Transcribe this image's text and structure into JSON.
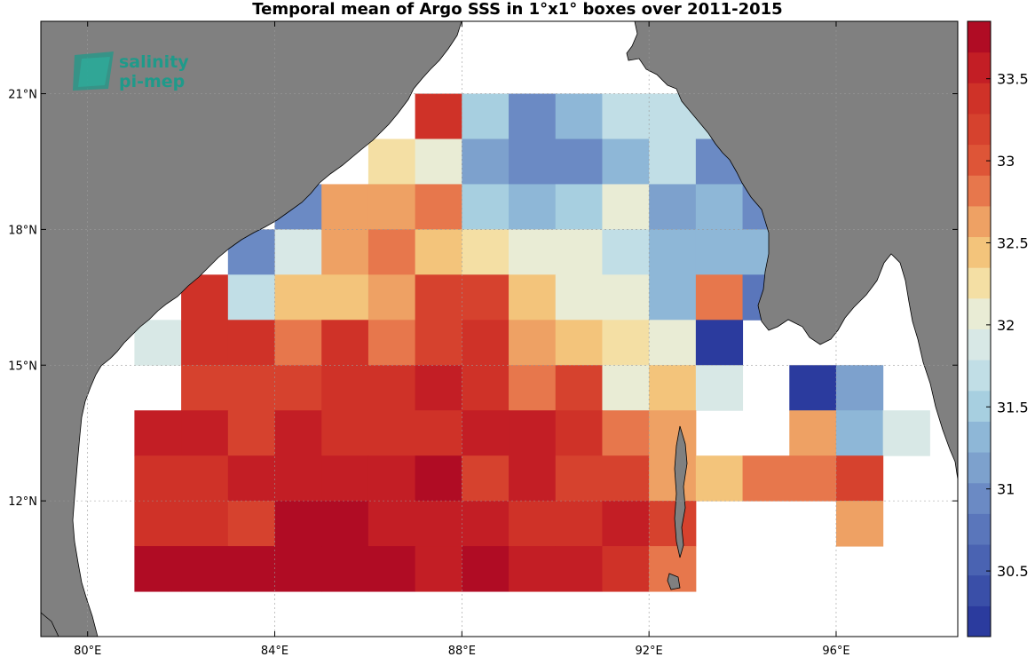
{
  "title": "Temporal mean of Argo SSS in 1°x1° boxes over 2011-2015",
  "logo": {
    "line1": "salinity",
    "line2": "pi-mep",
    "color": "#1f9a8a"
  },
  "colors": {
    "land": "#808080",
    "ocean": "#ffffff",
    "frame": "#000000",
    "grid": "#9a9a9a"
  },
  "chart_data": {
    "type": "heatmap",
    "variable": "SSS",
    "lon_range": [
      79,
      98.6
    ],
    "lat_range": [
      9,
      22.6
    ],
    "x_ticks": [
      80,
      84,
      88,
      92,
      96
    ],
    "x_tick_labels": [
      "80°E",
      "84°E",
      "88°E",
      "92°E",
      "96°E"
    ],
    "y_ticks": [
      12,
      15,
      18,
      21
    ],
    "y_tick_labels": [
      "12°N",
      "15°N",
      "18°N",
      "21°N"
    ],
    "grid": true,
    "colorbar": {
      "min": 30.1,
      "max": 33.85,
      "ticks": [
        30.5,
        31,
        31.5,
        32,
        32.5,
        33,
        33.5
      ],
      "tick_labels": [
        "30.5",
        "31",
        "31.5",
        "32",
        "32.5",
        "33",
        "33.5"
      ],
      "colors": [
        "#2b3b9e",
        "#3a4fa8",
        "#4a63b2",
        "#5a76bb",
        "#6b8ac4",
        "#7da1cd",
        "#8eb7d7",
        "#a7cfe0",
        "#c1dee6",
        "#d8e8e6",
        "#e9ecd5",
        "#f4dfa4",
        "#f3c47b",
        "#eea164",
        "#e7774c",
        "#de5537",
        "#d6422e",
        "#cf3228",
        "#c31e25",
        "#b00c24"
      ]
    },
    "cells": [
      {
        "lon": 87,
        "lat": 20,
        "sss": 33.3
      },
      {
        "lon": 88,
        "lat": 20,
        "sss": 31.5
      },
      {
        "lon": 89,
        "lat": 20,
        "sss": 30.9
      },
      {
        "lon": 90,
        "lat": 20,
        "sss": 31.3
      },
      {
        "lon": 91,
        "lat": 20,
        "sss": 31.7
      },
      {
        "lon": 92,
        "lat": 20,
        "sss": 31.7
      },
      {
        "lon": 93,
        "lat": 20,
        "sss": 31.6
      },
      {
        "lon": 86,
        "lat": 19,
        "sss": 32.3
      },
      {
        "lon": 87,
        "lat": 19,
        "sss": 32.1
      },
      {
        "lon": 88,
        "lat": 19,
        "sss": 31.2
      },
      {
        "lon": 89,
        "lat": 19,
        "sss": 30.9
      },
      {
        "lon": 90,
        "lat": 19,
        "sss": 31.0
      },
      {
        "lon": 91,
        "lat": 19,
        "sss": 31.4
      },
      {
        "lon": 92,
        "lat": 19,
        "sss": 31.7
      },
      {
        "lon": 93,
        "lat": 19,
        "sss": 30.9
      },
      {
        "lon": 94,
        "lat": 19,
        "sss": 31.9
      },
      {
        "lon": 84,
        "lat": 18,
        "sss": 30.9
      },
      {
        "lon": 85,
        "lat": 18,
        "sss": 32.7
      },
      {
        "lon": 86,
        "lat": 18,
        "sss": 32.7
      },
      {
        "lon": 87,
        "lat": 18,
        "sss": 32.9
      },
      {
        "lon": 88,
        "lat": 18,
        "sss": 31.5
      },
      {
        "lon": 89,
        "lat": 18,
        "sss": 31.4
      },
      {
        "lon": 90,
        "lat": 18,
        "sss": 31.5
      },
      {
        "lon": 91,
        "lat": 18,
        "sss": 32.1
      },
      {
        "lon": 92,
        "lat": 18,
        "sss": 31.2
      },
      {
        "lon": 93,
        "lat": 18,
        "sss": 31.3
      },
      {
        "lon": 94,
        "lat": 18,
        "sss": 30.9
      },
      {
        "lon": 83,
        "lat": 17,
        "sss": 31.0
      },
      {
        "lon": 84,
        "lat": 17,
        "sss": 31.9
      },
      {
        "lon": 85,
        "lat": 17,
        "sss": 32.7
      },
      {
        "lon": 86,
        "lat": 17,
        "sss": 32.9
      },
      {
        "lon": 87,
        "lat": 17,
        "sss": 32.5
      },
      {
        "lon": 88,
        "lat": 17,
        "sss": 32.3
      },
      {
        "lon": 89,
        "lat": 17,
        "sss": 32.1
      },
      {
        "lon": 90,
        "lat": 17,
        "sss": 32.1
      },
      {
        "lon": 91,
        "lat": 17,
        "sss": 31.7
      },
      {
        "lon": 92,
        "lat": 17,
        "sss": 31.4
      },
      {
        "lon": 93,
        "lat": 17,
        "sss": 31.4
      },
      {
        "lon": 94,
        "lat": 17,
        "sss": 31.3
      },
      {
        "lon": 82,
        "lat": 16,
        "sss": 33.3
      },
      {
        "lon": 83,
        "lat": 16,
        "sss": 31.7
      },
      {
        "lon": 84,
        "lat": 16,
        "sss": 32.5
      },
      {
        "lon": 85,
        "lat": 16,
        "sss": 32.5
      },
      {
        "lon": 86,
        "lat": 16,
        "sss": 32.7
      },
      {
        "lon": 87,
        "lat": 16,
        "sss": 33.1
      },
      {
        "lon": 88,
        "lat": 16,
        "sss": 33.1
      },
      {
        "lon": 89,
        "lat": 16,
        "sss": 32.5
      },
      {
        "lon": 90,
        "lat": 16,
        "sss": 32.1
      },
      {
        "lon": 91,
        "lat": 16,
        "sss": 32.1
      },
      {
        "lon": 92,
        "lat": 16,
        "sss": 31.4
      },
      {
        "lon": 93,
        "lat": 16,
        "sss": 32.9
      },
      {
        "lon": 94,
        "lat": 16,
        "sss": 30.8
      },
      {
        "lon": 81,
        "lat": 15,
        "sss": 31.9
      },
      {
        "lon": 82,
        "lat": 15,
        "sss": 33.3
      },
      {
        "lon": 83,
        "lat": 15,
        "sss": 33.3
      },
      {
        "lon": 84,
        "lat": 15,
        "sss": 32.9
      },
      {
        "lon": 85,
        "lat": 15,
        "sss": 33.3
      },
      {
        "lon": 86,
        "lat": 15,
        "sss": 32.9
      },
      {
        "lon": 87,
        "lat": 15,
        "sss": 33.1
      },
      {
        "lon": 88,
        "lat": 15,
        "sss": 33.3
      },
      {
        "lon": 89,
        "lat": 15,
        "sss": 32.7
      },
      {
        "lon": 90,
        "lat": 15,
        "sss": 32.5
      },
      {
        "lon": 91,
        "lat": 15,
        "sss": 32.3
      },
      {
        "lon": 92,
        "lat": 15,
        "sss": 32.1
      },
      {
        "lon": 93,
        "lat": 15,
        "sss": 30.2
      },
      {
        "lon": 82,
        "lat": 14,
        "sss": 33.2
      },
      {
        "lon": 83,
        "lat": 14,
        "sss": 33.1
      },
      {
        "lon": 84,
        "lat": 14,
        "sss": 33.1
      },
      {
        "lon": 85,
        "lat": 14,
        "sss": 33.3
      },
      {
        "lon": 86,
        "lat": 14,
        "sss": 33.3
      },
      {
        "lon": 87,
        "lat": 14,
        "sss": 33.5
      },
      {
        "lon": 88,
        "lat": 14,
        "sss": 33.3
      },
      {
        "lon": 89,
        "lat": 14,
        "sss": 32.9
      },
      {
        "lon": 90,
        "lat": 14,
        "sss": 33.1
      },
      {
        "lon": 91,
        "lat": 14,
        "sss": 32.1
      },
      {
        "lon": 92,
        "lat": 14,
        "sss": 32.5
      },
      {
        "lon": 93,
        "lat": 14,
        "sss": 31.9
      },
      {
        "lon": 95,
        "lat": 14,
        "sss": 30.2
      },
      {
        "lon": 96,
        "lat": 14,
        "sss": 31.2
      },
      {
        "lon": 81,
        "lat": 13,
        "sss": 33.5
      },
      {
        "lon": 82,
        "lat": 13,
        "sss": 33.5
      },
      {
        "lon": 83,
        "lat": 13,
        "sss": 33.1
      },
      {
        "lon": 84,
        "lat": 13,
        "sss": 33.6
      },
      {
        "lon": 85,
        "lat": 13,
        "sss": 33.3
      },
      {
        "lon": 86,
        "lat": 13,
        "sss": 33.3
      },
      {
        "lon": 87,
        "lat": 13,
        "sss": 33.3
      },
      {
        "lon": 88,
        "lat": 13,
        "sss": 33.5
      },
      {
        "lon": 89,
        "lat": 13,
        "sss": 33.5
      },
      {
        "lon": 90,
        "lat": 13,
        "sss": 33.3
      },
      {
        "lon": 91,
        "lat": 13,
        "sss": 32.9
      },
      {
        "lon": 92,
        "lat": 13,
        "sss": 32.7
      },
      {
        "lon": 95,
        "lat": 13,
        "sss": 32.7
      },
      {
        "lon": 96,
        "lat": 13,
        "sss": 31.4
      },
      {
        "lon": 97,
        "lat": 13,
        "sss": 31.9
      },
      {
        "lon": 81,
        "lat": 12,
        "sss": 33.4
      },
      {
        "lon": 82,
        "lat": 12,
        "sss": 33.4
      },
      {
        "lon": 83,
        "lat": 12,
        "sss": 33.6
      },
      {
        "lon": 84,
        "lat": 12,
        "sss": 33.5
      },
      {
        "lon": 85,
        "lat": 12,
        "sss": 33.6
      },
      {
        "lon": 86,
        "lat": 12,
        "sss": 33.6
      },
      {
        "lon": 87,
        "lat": 12,
        "sss": 33.8
      },
      {
        "lon": 88,
        "lat": 12,
        "sss": 33.2
      },
      {
        "lon": 89,
        "lat": 12,
        "sss": 33.6
      },
      {
        "lon": 90,
        "lat": 12,
        "sss": 33.1
      },
      {
        "lon": 91,
        "lat": 12,
        "sss": 33.1
      },
      {
        "lon": 92,
        "lat": 12,
        "sss": 32.7
      },
      {
        "lon": 93,
        "lat": 12,
        "sss": 32.5
      },
      {
        "lon": 94,
        "lat": 12,
        "sss": 32.9
      },
      {
        "lon": 95,
        "lat": 12,
        "sss": 32.9
      },
      {
        "lon": 96,
        "lat": 12,
        "sss": 33.1
      },
      {
        "lon": 81,
        "lat": 11,
        "sss": 33.4
      },
      {
        "lon": 82,
        "lat": 11,
        "sss": 33.4
      },
      {
        "lon": 83,
        "lat": 11,
        "sss": 33.1
      },
      {
        "lon": 84,
        "lat": 11,
        "sss": 33.8
      },
      {
        "lon": 85,
        "lat": 11,
        "sss": 33.8
      },
      {
        "lon": 86,
        "lat": 11,
        "sss": 33.6
      },
      {
        "lon": 87,
        "lat": 11,
        "sss": 33.6
      },
      {
        "lon": 88,
        "lat": 11,
        "sss": 33.6
      },
      {
        "lon": 89,
        "lat": 11,
        "sss": 33.4
      },
      {
        "lon": 90,
        "lat": 11,
        "sss": 33.3
      },
      {
        "lon": 91,
        "lat": 11,
        "sss": 33.5
      },
      {
        "lon": 92,
        "lat": 11,
        "sss": 33.2
      },
      {
        "lon": 96,
        "lat": 11,
        "sss": 32.7
      },
      {
        "lon": 81,
        "lat": 10,
        "sss": 33.8
      },
      {
        "lon": 82,
        "lat": 10,
        "sss": 33.8
      },
      {
        "lon": 83,
        "lat": 10,
        "sss": 33.8
      },
      {
        "lon": 84,
        "lat": 10,
        "sss": 33.8
      },
      {
        "lon": 85,
        "lat": 10,
        "sss": 33.8
      },
      {
        "lon": 86,
        "lat": 10,
        "sss": 33.8
      },
      {
        "lon": 87,
        "lat": 10,
        "sss": 33.5
      },
      {
        "lon": 88,
        "lat": 10,
        "sss": 33.8
      },
      {
        "lon": 89,
        "lat": 10,
        "sss": 33.6
      },
      {
        "lon": 90,
        "lat": 10,
        "sss": 33.6
      },
      {
        "lon": 91,
        "lat": 10,
        "sss": 33.4
      },
      {
        "lon": 92,
        "lat": 10,
        "sss": 32.9
      }
    ]
  }
}
